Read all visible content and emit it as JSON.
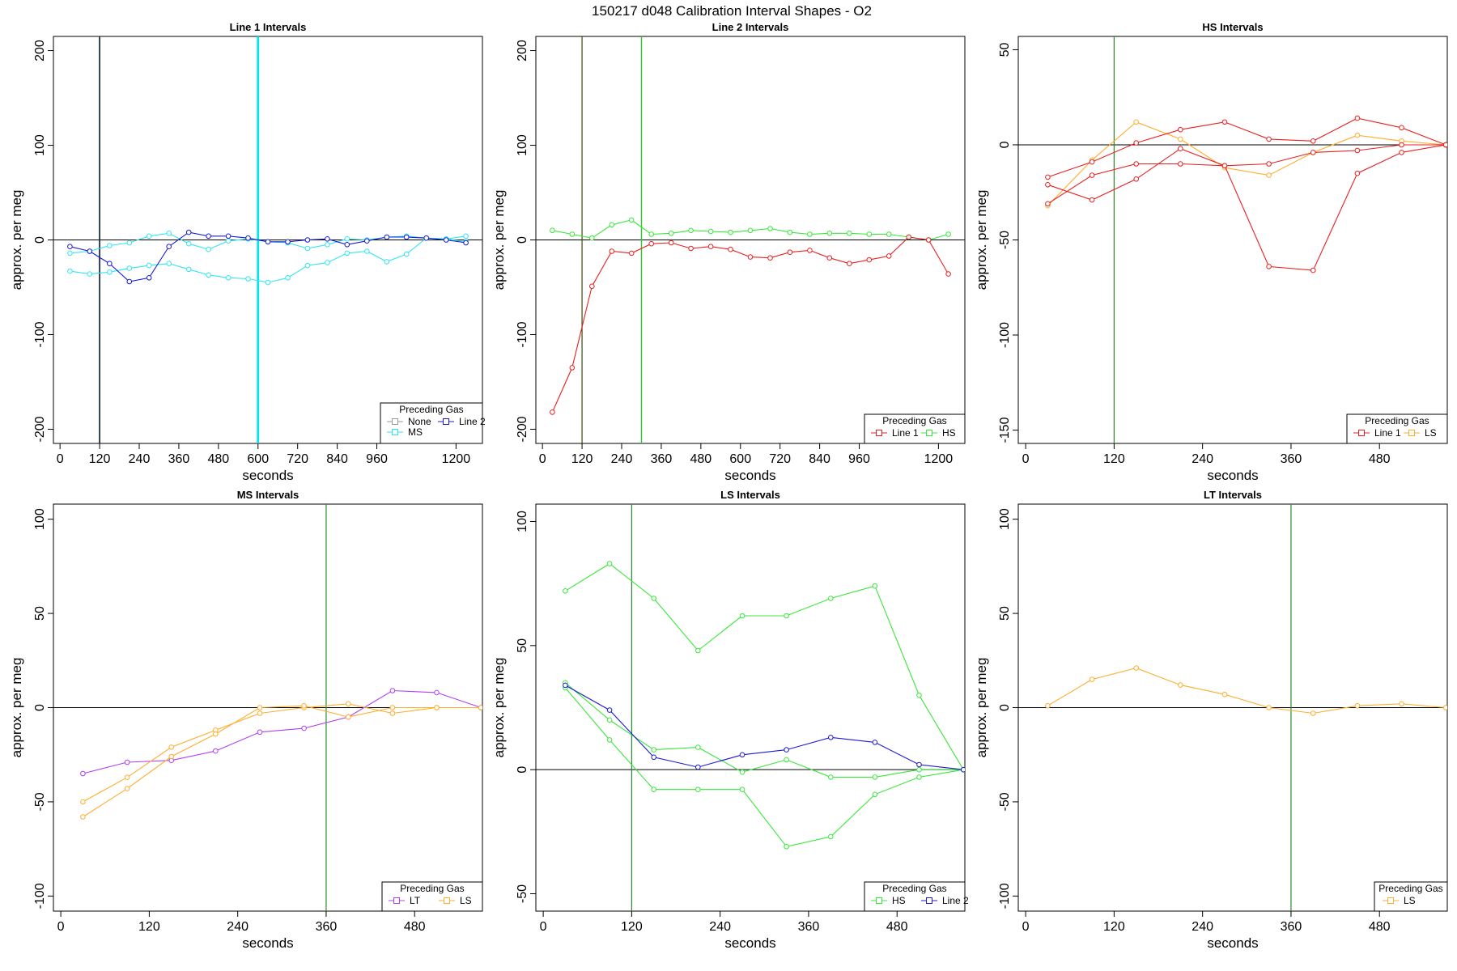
{
  "page": {
    "title": "150217   d048   Calibration Interval Shapes - O2"
  },
  "chart_data": [
    {
      "type": "line",
      "title": "Line 1 Intervals",
      "xlabel": "seconds",
      "ylabel": "approx. per meg",
      "xlim": [
        -20,
        1280
      ],
      "ylim": [
        -215,
        215
      ],
      "xticks": [
        "0",
        "120",
        "240",
        "360",
        "480",
        "600",
        "720",
        "840",
        "960",
        "1200"
      ],
      "xtick_values": [
        0,
        120,
        240,
        360,
        480,
        600,
        720,
        840,
        960,
        1200
      ],
      "yticks": [
        "-200",
        "-100",
        "0",
        "100",
        "200"
      ],
      "ytick_values": [
        -200,
        -100,
        0,
        100,
        200
      ],
      "hlines": [
        0
      ],
      "vlines": [
        {
          "x": 120,
          "color": "#1e2f4a",
          "width": 1.8
        },
        {
          "x": 600,
          "color": "#00e5ee",
          "width": 2.8
        }
      ],
      "legend": {
        "title": "Preceding Gas",
        "position": "bottom-right",
        "items": [
          {
            "label": "None",
            "color": "#9b9b9b"
          },
          {
            "label": "Line 2",
            "color": "#1a1ad6"
          },
          {
            "label": "MS",
            "color": "#32e6f0"
          }
        ]
      },
      "series": [
        {
          "legend": "MS",
          "color": "#32e6f0",
          "x": [
            30,
            90,
            150,
            210,
            270,
            330,
            390,
            450,
            510,
            570,
            630,
            690,
            750,
            810,
            870,
            930,
            990,
            1050,
            1110,
            1170,
            1230
          ],
          "y": [
            -14,
            -12,
            -6,
            -3,
            4,
            7,
            -4,
            -10,
            -1,
            1,
            -2,
            -3,
            -9,
            -5,
            1,
            0,
            3,
            4,
            2,
            1,
            4
          ]
        },
        {
          "legend": "MS",
          "color": "#32e6f0",
          "x": [
            30,
            90,
            150,
            210,
            270,
            330,
            390,
            450,
            510,
            570,
            630,
            690,
            750,
            810,
            870,
            930,
            990,
            1050,
            1110,
            1170,
            1230
          ],
          "y": [
            -33,
            -36,
            -34,
            -30,
            -27,
            -25,
            -31,
            -37,
            -40,
            -41,
            -45,
            -40,
            -27,
            -24,
            -14,
            -12,
            -23,
            -15,
            2,
            1,
            -2
          ]
        },
        {
          "legend": "Line 2",
          "color": "#1a1ad6",
          "x": [
            30,
            90,
            150,
            210,
            270,
            330,
            390,
            450,
            510,
            570,
            630,
            690,
            750,
            810,
            870,
            930,
            990,
            1050,
            1110,
            1170,
            1230
          ],
          "y": [
            -7,
            -12,
            -25,
            -44,
            -40,
            -7,
            8,
            4,
            4,
            2,
            -2,
            -2,
            0,
            1,
            -5,
            -1,
            3,
            3,
            2,
            0,
            -3
          ]
        }
      ]
    },
    {
      "type": "line",
      "title": "Line 2 Intervals",
      "xlabel": "seconds",
      "ylabel": "approx. per meg",
      "xlim": [
        -20,
        1280
      ],
      "ylim": [
        -215,
        215
      ],
      "xticks": [
        "0",
        "120",
        "240",
        "360",
        "480",
        "600",
        "720",
        "840",
        "960",
        "1200"
      ],
      "xtick_values": [
        0,
        120,
        240,
        360,
        480,
        600,
        720,
        840,
        960,
        1200
      ],
      "yticks": [
        "-200",
        "-100",
        "0",
        "100",
        "200"
      ],
      "ytick_values": [
        -200,
        -100,
        0,
        100,
        200
      ],
      "hlines": [
        0
      ],
      "vlines": [
        {
          "x": 120,
          "color": "#3a4a10",
          "width": 1.2
        },
        {
          "x": 300,
          "color": "#2ec82e",
          "width": 1.4
        }
      ],
      "legend": {
        "title": "Preceding Gas",
        "position": "bottom-right",
        "items": [
          {
            "label": "Line 1",
            "color": "#e82020"
          },
          {
            "label": "HS",
            "color": "#38e838"
          }
        ]
      },
      "series": [
        {
          "legend": "HS",
          "color": "#38e838",
          "x": [
            30,
            90,
            150,
            210,
            270,
            330,
            390,
            450,
            510,
            570,
            630,
            690,
            750,
            810,
            870,
            930,
            990,
            1050,
            1110,
            1170,
            1230
          ],
          "y": [
            10,
            6,
            2,
            16,
            21,
            6,
            7,
            10,
            9,
            8,
            10,
            12,
            8,
            6,
            7,
            7,
            6,
            6,
            3,
            0,
            6
          ]
        },
        {
          "legend": "Line 1",
          "color": "#e82020",
          "x": [
            30,
            90,
            150,
            210,
            270,
            330,
            390,
            450,
            510,
            570,
            630,
            690,
            750,
            810,
            870,
            930,
            990,
            1050,
            1110,
            1170,
            1230
          ],
          "y": [
            -182,
            -135,
            -49,
            -12,
            -14,
            -4,
            -3,
            -9,
            -7,
            -10,
            -18,
            -19,
            -13,
            -11,
            -19,
            -25,
            -21,
            -17,
            3,
            0,
            -36
          ]
        }
      ]
    },
    {
      "type": "line",
      "title": "HS Intervals",
      "xlabel": "seconds",
      "ylabel": "approx. per meg",
      "xlim": [
        -10,
        572
      ],
      "ylim": [
        -157,
        57
      ],
      "xticks": [
        "0",
        "120",
        "240",
        "360",
        "480"
      ],
      "xtick_values": [
        0,
        120,
        240,
        360,
        480
      ],
      "yticks": [
        "-150",
        "-100",
        "-50",
        "0",
        "50"
      ],
      "ytick_values": [
        -150,
        -100,
        -50,
        0,
        50
      ],
      "hlines": [
        0
      ],
      "vlines": [
        {
          "x": 120,
          "color": "#2a8a2a",
          "width": 1.2
        }
      ],
      "legend": {
        "title": "Preceding Gas",
        "position": "bottom-right",
        "items": [
          {
            "label": "Line 1",
            "color": "#e82020"
          },
          {
            "label": "LS",
            "color": "#ffad2e"
          }
        ]
      },
      "series": [
        {
          "legend": "LS",
          "color": "#ffad2e",
          "x": [
            30,
            90,
            150,
            210,
            270,
            330,
            390,
            450,
            510,
            570
          ],
          "y": [
            -32,
            -8,
            12,
            3,
            -12,
            -16,
            -4,
            5,
            2,
            0
          ]
        },
        {
          "legend": "Line 1",
          "color": "#e82020",
          "x": [
            30,
            90,
            150,
            210,
            270,
            330,
            390,
            450,
            510,
            570
          ],
          "y": [
            -17,
            -9,
            1,
            8,
            12,
            3,
            2,
            14,
            9,
            0
          ]
        },
        {
          "legend": "Line 1",
          "color": "#e82020",
          "x": [
            30,
            90,
            150,
            210,
            270,
            330,
            390,
            450,
            510,
            570
          ],
          "y": [
            -21,
            -29,
            -18,
            -2,
            -11,
            -64,
            -66,
            -15,
            -4,
            0
          ]
        },
        {
          "legend": "Line 1",
          "color": "#e82020",
          "x": [
            30,
            90,
            150,
            210,
            270,
            330,
            390,
            450,
            510,
            570
          ],
          "y": [
            -31,
            -16,
            -10,
            -10,
            -11,
            -10,
            -4,
            -3,
            0,
            0
          ]
        }
      ]
    },
    {
      "type": "line",
      "title": "MS Intervals",
      "xlabel": "seconds",
      "ylabel": "approx. per meg",
      "xlim": [
        -10,
        572
      ],
      "ylim": [
        -108,
        108
      ],
      "xticks": [
        "0",
        "120",
        "240",
        "360",
        "480"
      ],
      "xtick_values": [
        0,
        120,
        240,
        360,
        480
      ],
      "yticks": [
        "-100",
        "-50",
        "0",
        "50",
        "100"
      ],
      "ytick_values": [
        -100,
        -50,
        0,
        50,
        100
      ],
      "hlines": [
        0
      ],
      "vlines": [
        {
          "x": 360,
          "color": "#2a8a2a",
          "width": 1.2
        }
      ],
      "legend": {
        "title": "Preceding Gas",
        "position": "bottom-right",
        "items": [
          {
            "label": "LT",
            "color": "#b040f0"
          },
          {
            "label": "LS",
            "color": "#ffad2e"
          }
        ]
      },
      "series": [
        {
          "legend": "LT",
          "color": "#b040f0",
          "x": [
            30,
            90,
            150,
            210,
            270,
            330,
            390,
            450,
            510,
            570
          ],
          "y": [
            -35,
            -29,
            -28,
            -23,
            -13,
            -11,
            -5,
            9,
            8,
            0
          ]
        },
        {
          "legend": "LS",
          "color": "#ffad2e",
          "x": [
            30,
            90,
            150,
            210,
            270,
            330,
            390,
            450,
            510,
            570
          ],
          "y": [
            -50,
            -37,
            -21,
            -12,
            -3,
            0,
            2,
            -3,
            0,
            0
          ]
        },
        {
          "legend": "LS",
          "color": "#ffad2e",
          "x": [
            30,
            90,
            150,
            210,
            270,
            330,
            390,
            450,
            510,
            570
          ],
          "y": [
            -58,
            -43,
            -26,
            -14,
            0,
            1,
            -5,
            0,
            0,
            0
          ]
        }
      ]
    },
    {
      "type": "line",
      "title": "LS Intervals",
      "xlabel": "seconds",
      "ylabel": "approx. per meg",
      "xlim": [
        -10,
        572
      ],
      "ylim": [
        -57,
        107
      ],
      "xticks": [
        "0",
        "120",
        "240",
        "360",
        "480"
      ],
      "xtick_values": [
        0,
        120,
        240,
        360,
        480
      ],
      "yticks": [
        "-50",
        "0",
        "50",
        "100"
      ],
      "ytick_values": [
        -50,
        0,
        50,
        100
      ],
      "hlines": [
        0
      ],
      "vlines": [
        {
          "x": 120,
          "color": "#2a8a2a",
          "width": 1.2
        }
      ],
      "legend": {
        "title": "Preceding Gas",
        "position": "bottom-right",
        "items": [
          {
            "label": "HS",
            "color": "#38e838"
          },
          {
            "label": "Line 2",
            "color": "#1a1ad6"
          }
        ]
      },
      "series": [
        {
          "legend": "HS",
          "color": "#38e838",
          "x": [
            30,
            90,
            150,
            210,
            270,
            330,
            390,
            450,
            510,
            570
          ],
          "y": [
            72,
            83,
            69,
            48,
            62,
            62,
            69,
            74,
            30,
            0
          ]
        },
        {
          "legend": "HS",
          "color": "#38e838",
          "x": [
            30,
            90,
            150,
            210,
            270,
            330,
            390,
            450,
            510,
            570
          ],
          "y": [
            35,
            20,
            8,
            9,
            -1,
            4,
            -3,
            -3,
            0,
            0
          ]
        },
        {
          "legend": "HS",
          "color": "#38e838",
          "x": [
            30,
            90,
            150,
            210,
            270,
            330,
            390,
            450,
            510,
            570
          ],
          "y": [
            33,
            12,
            -8,
            -8,
            -8,
            -31,
            -27,
            -10,
            -3,
            0
          ]
        },
        {
          "legend": "Line 2",
          "color": "#1a1ad6",
          "x": [
            30,
            90,
            150,
            210,
            270,
            330,
            390,
            450,
            510,
            570
          ],
          "y": [
            34,
            24,
            5,
            1,
            6,
            8,
            13,
            11,
            2,
            0
          ]
        }
      ]
    },
    {
      "type": "line",
      "title": "LT Intervals",
      "xlabel": "seconds",
      "ylabel": "approx. per meg",
      "xlim": [
        -10,
        572
      ],
      "ylim": [
        -108,
        108
      ],
      "xticks": [
        "0",
        "120",
        "240",
        "360",
        "480"
      ],
      "xtick_values": [
        0,
        120,
        240,
        360,
        480
      ],
      "yticks": [
        "-100",
        "-50",
        "0",
        "50",
        "100"
      ],
      "ytick_values": [
        -100,
        -50,
        0,
        50,
        100
      ],
      "hlines": [
        0
      ],
      "vlines": [
        {
          "x": 360,
          "color": "#2a8a2a",
          "width": 1.2
        }
      ],
      "legend": {
        "title": "Preceding Gas",
        "position": "bottom-right",
        "items": [
          {
            "label": "LS",
            "color": "#ffad2e"
          }
        ]
      },
      "series": [
        {
          "legend": "LS",
          "color": "#ffad2e",
          "x": [
            30,
            90,
            150,
            210,
            270,
            330,
            390,
            450,
            510,
            570
          ],
          "y": [
            1,
            15,
            21,
            12,
            7,
            0,
            -3,
            1,
            2,
            0
          ]
        }
      ]
    }
  ]
}
